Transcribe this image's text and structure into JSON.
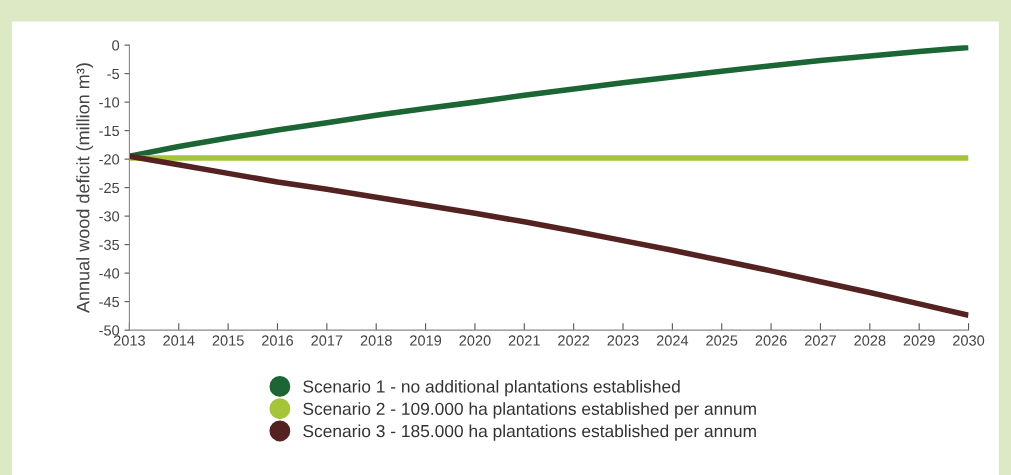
{
  "chart_data": {
    "type": "line",
    "ylabel": "Annual wood deficit (million m³)",
    "x": [
      2013,
      2014,
      2015,
      2016,
      2017,
      2018,
      2019,
      2020,
      2021,
      2022,
      2023,
      2024,
      2025,
      2026,
      2027,
      2028,
      2029,
      2030
    ],
    "series": [
      {
        "name": "Scenario 1 - no additional plantations established",
        "color": "#1b6634",
        "values": [
          -19.5,
          -17.8,
          -16.3,
          -14.9,
          -13.6,
          -12.3,
          -11.1,
          -10,
          -8.8,
          -7.7,
          -6.6,
          -5.6,
          -4.6,
          -3.6,
          -2.7,
          -1.9,
          -1.1,
          -0.4
        ]
      },
      {
        "name": "Scenario 2 - 109.000 ha plantations established per annum",
        "color": "#a5c43a",
        "values": [
          -19.8,
          -19.8,
          -19.8,
          -19.8,
          -19.8,
          -19.8,
          -19.8,
          -19.8,
          -19.8,
          -19.8,
          -19.8,
          -19.8,
          -19.8,
          -19.8,
          -19.8,
          -19.8,
          -19.8,
          -19.8
        ]
      },
      {
        "name": "Scenario 3 - 185.000 ha plantations established per annum",
        "color": "#552222",
        "values": [
          -19.5,
          -21,
          -22.5,
          -24,
          -25.3,
          -26.7,
          -28.1,
          -29.5,
          -31,
          -32.6,
          -34.3,
          -36,
          -37.8,
          -39.6,
          -41.5,
          -43.4,
          -45.4,
          -47.4
        ]
      }
    ],
    "xlim": [
      2013,
      2030
    ],
    "xticks": [
      2013,
      2014,
      2015,
      2016,
      2017,
      2018,
      2019,
      2020,
      2021,
      2022,
      2023,
      2024,
      2025,
      2026,
      2027,
      2028,
      2029,
      2030
    ],
    "ylim": [
      -50,
      0
    ],
    "yticks": [
      -50,
      -45,
      -40,
      -35,
      -30,
      -25,
      -20,
      -15,
      -10,
      -5,
      0
    ],
    "grid": false,
    "legend": "bottom",
    "marker": "none",
    "line_style": "solid"
  }
}
